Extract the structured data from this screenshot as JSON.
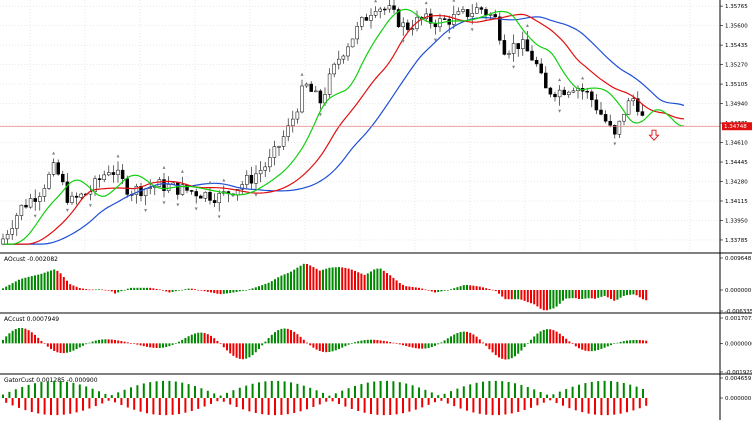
{
  "main": {
    "price_axis_labels": [
      "1.35765",
      "1.35600",
      "1.35435",
      "1.35270",
      "1.35105",
      "1.34940",
      "1.34775",
      "1.34610",
      "1.34445",
      "1.34280",
      "1.34115",
      "1.33950",
      "1.33785"
    ],
    "price_min": 1.337,
    "price_max": 1.358,
    "current_price": "1.34748",
    "current_price_value": 1.34748,
    "down_arrow_icon": "hollow-down-arrow",
    "colors": {
      "bull_candle": "#000000",
      "bear_candle": "#000000",
      "grid": "#c8c8c8",
      "jaw": "#1f4fd6",
      "teeth": "#e01010",
      "lips": "#10d010",
      "price_line": "#e08080",
      "fractal": "#808080",
      "arrow": "#e01010"
    }
  },
  "aocust": {
    "title": "AOcust -0.002082",
    "labels": [
      "0.009648",
      "0.000000",
      "-0.006335"
    ],
    "max": 0.009648,
    "min": -0.006335
  },
  "accust": {
    "title": "ACcust 0.0007949",
    "labels": [
      "0.0017072",
      "0.0000000",
      "-0.0019291"
    ],
    "max": 0.0017072,
    "min": -0.0019291
  },
  "gatorcust": {
    "title": "GatorCust 0.001285 -0.000900",
    "labels": [
      "0.004659",
      "0.000000"
    ],
    "max": 0.004659,
    "min": -0.004659
  },
  "histogram_colors": {
    "up": "#008800",
    "down": "#ee0000"
  }
}
